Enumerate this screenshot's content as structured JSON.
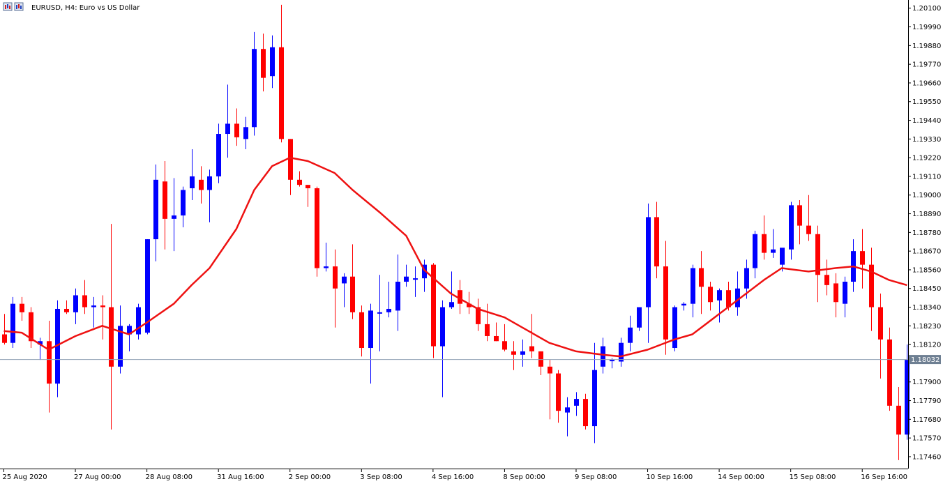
{
  "window": {
    "symbol_icon": "chart-window-icon",
    "title": "EURUSD, H4:  Euro vs US Dollar"
  },
  "colors": {
    "bull": "#0000ff",
    "bear": "#ff0000",
    "ma_line": "#ee1111",
    "grid_frame": "#000000",
    "price_line": "#8fa0b4",
    "price_tag_bg": "#6e7f92",
    "price_tag_text": "#ffffff"
  },
  "chart_data": {
    "type": "candlestick",
    "title": "EURUSD, H4:  Euro vs US Dollar",
    "ylim": [
      1.1739,
      1.2014
    ],
    "yticks": [
      "1.20100",
      "1.19990",
      "1.19880",
      "1.19770",
      "1.19660",
      "1.19550",
      "1.19440",
      "1.19330",
      "1.19220",
      "1.19110",
      "1.19000",
      "1.18890",
      "1.18780",
      "1.18670",
      "1.18560",
      "1.18450",
      "1.18340",
      "1.18230",
      "1.18120",
      "1.17900",
      "1.17790",
      "1.17680",
      "1.17570",
      "1.17460"
    ],
    "current_price": "1.18032",
    "xtick_labels": [
      {
        "bar": 0,
        "label": "25 Aug 2020"
      },
      {
        "bar": 8,
        "label": "27 Aug 00:00"
      },
      {
        "bar": 16,
        "label": "28 Aug 08:00"
      },
      {
        "bar": 24,
        "label": "31 Aug 16:00"
      },
      {
        "bar": 32,
        "label": "2 Sep 00:00"
      },
      {
        "bar": 40,
        "label": "3 Sep 08:00"
      },
      {
        "bar": 48,
        "label": "4 Sep 16:00"
      },
      {
        "bar": 56,
        "label": "8 Sep 00:00"
      },
      {
        "bar": 64,
        "label": "9 Sep 08:00"
      },
      {
        "bar": 72,
        "label": "10 Sep 16:00"
      },
      {
        "bar": 80,
        "label": "14 Sep 00:00"
      },
      {
        "bar": 88,
        "label": "15 Sep 08:00"
      },
      {
        "bar": 96,
        "label": "16 Sep 16:00"
      }
    ],
    "candles": [
      {
        "o": 1.1818,
        "h": 1.183,
        "l": 1.1812,
        "c": 1.1813
      },
      {
        "o": 1.1813,
        "h": 1.184,
        "l": 1.181,
        "c": 1.1836
      },
      {
        "o": 1.1836,
        "h": 1.184,
        "l": 1.1826,
        "c": 1.1831
      },
      {
        "o": 1.1831,
        "h": 1.1834,
        "l": 1.181,
        "c": 1.1814
      },
      {
        "o": 1.1812,
        "h": 1.1816,
        "l": 1.1803,
        "c": 1.1814
      },
      {
        "o": 1.1814,
        "h": 1.1826,
        "l": 1.1772,
        "c": 1.1789
      },
      {
        "o": 1.1789,
        "h": 1.1838,
        "l": 1.1781,
        "c": 1.1833
      },
      {
        "o": 1.1833,
        "h": 1.1838,
        "l": 1.183,
        "c": 1.1831
      },
      {
        "o": 1.1831,
        "h": 1.1845,
        "l": 1.1824,
        "c": 1.1841
      },
      {
        "o": 1.1841,
        "h": 1.185,
        "l": 1.183,
        "c": 1.1834
      },
      {
        "o": 1.1834,
        "h": 1.184,
        "l": 1.1822,
        "c": 1.1835
      },
      {
        "o": 1.1835,
        "h": 1.1841,
        "l": 1.1815,
        "c": 1.1834
      },
      {
        "o": 1.1834,
        "h": 1.1883,
        "l": 1.1762,
        "c": 1.1799
      },
      {
        "o": 1.1799,
        "h": 1.1835,
        "l": 1.1795,
        "c": 1.1823
      },
      {
        "o": 1.1818,
        "h": 1.1824,
        "l": 1.1808,
        "c": 1.1823
      },
      {
        "o": 1.1818,
        "h": 1.1836,
        "l": 1.1815,
        "c": 1.1834
      },
      {
        "o": 1.1819,
        "h": 1.1874,
        "l": 1.1818,
        "c": 1.1874
      },
      {
        "o": 1.1874,
        "h": 1.1918,
        "l": 1.1861,
        "c": 1.1909
      },
      {
        "o": 1.1908,
        "h": 1.192,
        "l": 1.1868,
        "c": 1.1886
      },
      {
        "o": 1.1886,
        "h": 1.191,
        "l": 1.1867,
        "c": 1.1888
      },
      {
        "o": 1.1888,
        "h": 1.1905,
        "l": 1.1881,
        "c": 1.1903
      },
      {
        "o": 1.1904,
        "h": 1.1927,
        "l": 1.1897,
        "c": 1.1911
      },
      {
        "o": 1.1909,
        "h": 1.1917,
        "l": 1.1895,
        "c": 1.1903
      },
      {
        "o": 1.1903,
        "h": 1.1915,
        "l": 1.1884,
        "c": 1.1911
      },
      {
        "o": 1.1911,
        "h": 1.1942,
        "l": 1.1907,
        "c": 1.1936
      },
      {
        "o": 1.1936,
        "h": 1.1965,
        "l": 1.1922,
        "c": 1.1942
      },
      {
        "o": 1.1942,
        "h": 1.1951,
        "l": 1.1929,
        "c": 1.1934
      },
      {
        "o": 1.1933,
        "h": 1.1946,
        "l": 1.1927,
        "c": 1.194
      },
      {
        "o": 1.194,
        "h": 1.1996,
        "l": 1.1935,
        "c": 1.1986
      },
      {
        "o": 1.1986,
        "h": 1.1995,
        "l": 1.1961,
        "c": 1.1969
      },
      {
        "o": 1.197,
        "h": 1.1994,
        "l": 1.1963,
        "c": 1.1987
      },
      {
        "o": 1.1987,
        "h": 1.2012,
        "l": 1.1931,
        "c": 1.1933
      },
      {
        "o": 1.1933,
        "h": 1.1933,
        "l": 1.19,
        "c": 1.1909
      },
      {
        "o": 1.1909,
        "h": 1.1914,
        "l": 1.1905,
        "c": 1.1906
      },
      {
        "o": 1.1906,
        "h": 1.1906,
        "l": 1.1893,
        "c": 1.1904
      },
      {
        "o": 1.1904,
        "h": 1.1905,
        "l": 1.1852,
        "c": 1.1857
      },
      {
        "o": 1.1857,
        "h": 1.1872,
        "l": 1.1855,
        "c": 1.1858
      },
      {
        "o": 1.1858,
        "h": 1.1868,
        "l": 1.1822,
        "c": 1.1845
      },
      {
        "o": 1.1848,
        "h": 1.1854,
        "l": 1.1834,
        "c": 1.1852
      },
      {
        "o": 1.1852,
        "h": 1.1871,
        "l": 1.1827,
        "c": 1.1831
      },
      {
        "o": 1.1831,
        "h": 1.1835,
        "l": 1.1805,
        "c": 1.181
      },
      {
        "o": 1.181,
        "h": 1.1836,
        "l": 1.1789,
        "c": 1.1832
      },
      {
        "o": 1.1831,
        "h": 1.1853,
        "l": 1.1808,
        "c": 1.1831
      },
      {
        "o": 1.1831,
        "h": 1.1849,
        "l": 1.1828,
        "c": 1.1833
      },
      {
        "o": 1.1832,
        "h": 1.1865,
        "l": 1.182,
        "c": 1.1849
      },
      {
        "o": 1.1849,
        "h": 1.1859,
        "l": 1.1846,
        "c": 1.1852
      },
      {
        "o": 1.1851,
        "h": 1.1858,
        "l": 1.184,
        "c": 1.1851
      },
      {
        "o": 1.1851,
        "h": 1.1862,
        "l": 1.1843,
        "c": 1.1859
      },
      {
        "o": 1.1859,
        "h": 1.186,
        "l": 1.1804,
        "c": 1.1811
      },
      {
        "o": 1.1811,
        "h": 1.1838,
        "l": 1.1781,
        "c": 1.1834
      },
      {
        "o": 1.1834,
        "h": 1.1855,
        "l": 1.1833,
        "c": 1.1837
      },
      {
        "o": 1.1844,
        "h": 1.185,
        "l": 1.183,
        "c": 1.1836
      },
      {
        "o": 1.1836,
        "h": 1.1843,
        "l": 1.183,
        "c": 1.1834
      },
      {
        "o": 1.1834,
        "h": 1.1839,
        "l": 1.182,
        "c": 1.1824
      },
      {
        "o": 1.1824,
        "h": 1.1836,
        "l": 1.1814,
        "c": 1.1817
      },
      {
        "o": 1.1817,
        "h": 1.1825,
        "l": 1.1814,
        "c": 1.1814
      },
      {
        "o": 1.1814,
        "h": 1.1824,
        "l": 1.1808,
        "c": 1.1809
      },
      {
        "o": 1.1808,
        "h": 1.1814,
        "l": 1.1797,
        "c": 1.1806
      },
      {
        "o": 1.1806,
        "h": 1.1815,
        "l": 1.1799,
        "c": 1.1808
      },
      {
        "o": 1.1811,
        "h": 1.183,
        "l": 1.1804,
        "c": 1.1808
      },
      {
        "o": 1.1808,
        "h": 1.1808,
        "l": 1.1794,
        "c": 1.1799
      },
      {
        "o": 1.1799,
        "h": 1.1803,
        "l": 1.1768,
        "c": 1.1795
      },
      {
        "o": 1.1795,
        "h": 1.1797,
        "l": 1.1766,
        "c": 1.1773
      },
      {
        "o": 1.1772,
        "h": 1.1781,
        "l": 1.1758,
        "c": 1.1775
      },
      {
        "o": 1.1776,
        "h": 1.1784,
        "l": 1.177,
        "c": 1.178
      },
      {
        "o": 1.178,
        "h": 1.1783,
        "l": 1.1762,
        "c": 1.1764
      },
      {
        "o": 1.1764,
        "h": 1.1813,
        "l": 1.1754,
        "c": 1.1797
      },
      {
        "o": 1.1799,
        "h": 1.1816,
        "l": 1.1795,
        "c": 1.1811
      },
      {
        "o": 1.1803,
        "h": 1.1804,
        "l": 1.1798,
        "c": 1.1803
      },
      {
        "o": 1.1802,
        "h": 1.1816,
        "l": 1.1799,
        "c": 1.1813
      },
      {
        "o": 1.1813,
        "h": 1.1829,
        "l": 1.1808,
        "c": 1.1822
      },
      {
        "o": 1.1822,
        "h": 1.1834,
        "l": 1.182,
        "c": 1.1834
      },
      {
        "o": 1.1834,
        "h": 1.1895,
        "l": 1.1813,
        "c": 1.1887
      },
      {
        "o": 1.1887,
        "h": 1.1896,
        "l": 1.1851,
        "c": 1.1858
      },
      {
        "o": 1.1858,
        "h": 1.1873,
        "l": 1.1806,
        "c": 1.1815
      },
      {
        "o": 1.181,
        "h": 1.1835,
        "l": 1.1808,
        "c": 1.1834
      },
      {
        "o": 1.1835,
        "h": 1.1837,
        "l": 1.1832,
        "c": 1.1836
      },
      {
        "o": 1.1836,
        "h": 1.1859,
        "l": 1.1828,
        "c": 1.1857
      },
      {
        "o": 1.1857,
        "h": 1.1867,
        "l": 1.183,
        "c": 1.1846
      },
      {
        "o": 1.1846,
        "h": 1.1849,
        "l": 1.1832,
        "c": 1.1837
      },
      {
        "o": 1.1838,
        "h": 1.1845,
        "l": 1.1825,
        "c": 1.1844
      },
      {
        "o": 1.1844,
        "h": 1.1849,
        "l": 1.1832,
        "c": 1.1834
      },
      {
        "o": 1.1834,
        "h": 1.1855,
        "l": 1.1829,
        "c": 1.1845
      },
      {
        "o": 1.1845,
        "h": 1.1862,
        "l": 1.1839,
        "c": 1.1857
      },
      {
        "o": 1.1857,
        "h": 1.1879,
        "l": 1.1851,
        "c": 1.1877
      },
      {
        "o": 1.1877,
        "h": 1.1888,
        "l": 1.1862,
        "c": 1.1866
      },
      {
        "o": 1.1866,
        "h": 1.188,
        "l": 1.1863,
        "c": 1.1868
      },
      {
        "o": 1.1859,
        "h": 1.1868,
        "l": 1.1855,
        "c": 1.1869
      },
      {
        "o": 1.1868,
        "h": 1.1896,
        "l": 1.1862,
        "c": 1.1894
      },
      {
        "o": 1.1894,
        "h": 1.1897,
        "l": 1.1871,
        "c": 1.1882
      },
      {
        "o": 1.1882,
        "h": 1.19,
        "l": 1.1873,
        "c": 1.1877
      },
      {
        "o": 1.1877,
        "h": 1.1882,
        "l": 1.1837,
        "c": 1.1853
      },
      {
        "o": 1.1853,
        "h": 1.1862,
        "l": 1.1841,
        "c": 1.1847
      },
      {
        "o": 1.1848,
        "h": 1.1854,
        "l": 1.1828,
        "c": 1.1837
      },
      {
        "o": 1.1836,
        "h": 1.1852,
        "l": 1.1828,
        "c": 1.1849
      },
      {
        "o": 1.1849,
        "h": 1.1874,
        "l": 1.1843,
        "c": 1.1867
      },
      {
        "o": 1.1867,
        "h": 1.188,
        "l": 1.1845,
        "c": 1.1859
      },
      {
        "o": 1.1859,
        "h": 1.1869,
        "l": 1.182,
        "c": 1.1834
      },
      {
        "o": 1.1834,
        "h": 1.1842,
        "l": 1.1792,
        "c": 1.1815
      },
      {
        "o": 1.1815,
        "h": 1.1822,
        "l": 1.1773,
        "c": 1.1776
      },
      {
        "o": 1.1776,
        "h": 1.1787,
        "l": 1.1744,
        "c": 1.1759
      },
      {
        "o": 1.1759,
        "h": 1.1812,
        "l": 1.1756,
        "c": 1.1803
      }
    ],
    "moving_average": {
      "color": "#ee1111",
      "points": [
        [
          0,
          1.182
        ],
        [
          2,
          1.1819
        ],
        [
          5,
          1.1809
        ],
        [
          8,
          1.1817
        ],
        [
          11,
          1.1823
        ],
        [
          14,
          1.1818
        ],
        [
          16,
          1.1825
        ],
        [
          19,
          1.1836
        ],
        [
          21,
          1.1847
        ],
        [
          23,
          1.1857
        ],
        [
          26,
          1.188
        ],
        [
          28,
          1.1903
        ],
        [
          30,
          1.1917
        ],
        [
          32,
          1.1922
        ],
        [
          34,
          1.192
        ],
        [
          37,
          1.1913
        ],
        [
          39,
          1.1903
        ],
        [
          42,
          1.189
        ],
        [
          45,
          1.1876
        ],
        [
          47,
          1.1856
        ],
        [
          50,
          1.1842
        ],
        [
          53,
          1.1833
        ],
        [
          56,
          1.1828
        ],
        [
          58,
          1.1822
        ],
        [
          61,
          1.1813
        ],
        [
          64,
          1.1808
        ],
        [
          67,
          1.1806
        ],
        [
          69,
          1.1805
        ],
        [
          72,
          1.1809
        ],
        [
          75,
          1.1815
        ],
        [
          77,
          1.1818
        ],
        [
          80,
          1.183
        ],
        [
          83,
          1.1842
        ],
        [
          85,
          1.185
        ],
        [
          87,
          1.1857
        ],
        [
          90,
          1.1855
        ],
        [
          93,
          1.1857
        ],
        [
          95,
          1.1858
        ],
        [
          97,
          1.1855
        ],
        [
          99,
          1.185
        ],
        [
          101,
          1.1847
        ]
      ]
    }
  }
}
